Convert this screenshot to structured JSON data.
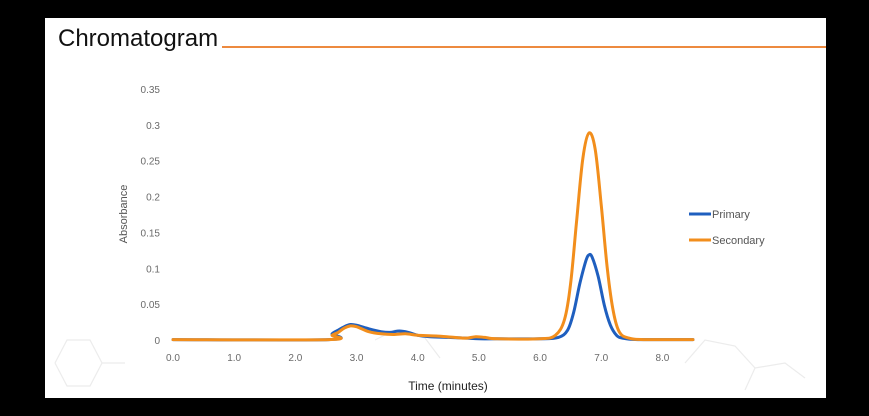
{
  "colors": {
    "primary": "#1f5fbf",
    "secondary": "#f28e1c",
    "accent_rule": "#ed8a3f"
  },
  "chart_data": {
    "type": "line",
    "title": "Chromatogram",
    "xlabel": "Time (minutes)",
    "ylabel": "Absorbance",
    "xlim": [
      0,
      8.5
    ],
    "ylim": [
      0,
      0.35
    ],
    "x_ticks": [
      "0.0",
      "1.0",
      "2.0",
      "3.0",
      "4.0",
      "5.0",
      "6.0",
      "7.0",
      "8.0"
    ],
    "y_ticks": [
      "0",
      "0.05",
      "0.1",
      "0.15",
      "0.2",
      "0.25",
      "0.3",
      "0.35"
    ],
    "grid": false,
    "legend_position": "right",
    "series": [
      {
        "name": "Primary",
        "color": "#1f5fbf",
        "points": [
          [
            0,
            0.002
          ],
          [
            2.55,
            0.002
          ],
          [
            2.6,
            0.01
          ],
          [
            2.7,
            0.015
          ],
          [
            2.8,
            0.02
          ],
          [
            2.9,
            0.023
          ],
          [
            3.0,
            0.022
          ],
          [
            3.2,
            0.017
          ],
          [
            3.4,
            0.013
          ],
          [
            3.55,
            0.012
          ],
          [
            3.7,
            0.014
          ],
          [
            3.85,
            0.012
          ],
          [
            4.0,
            0.008
          ],
          [
            4.2,
            0.006
          ],
          [
            4.5,
            0.005
          ],
          [
            4.8,
            0.004
          ],
          [
            5.0,
            0.003
          ],
          [
            5.3,
            0.003
          ],
          [
            6.0,
            0.003
          ],
          [
            6.3,
            0.005
          ],
          [
            6.45,
            0.015
          ],
          [
            6.55,
            0.04
          ],
          [
            6.65,
            0.08
          ],
          [
            6.75,
            0.112
          ],
          [
            6.8,
            0.12
          ],
          [
            6.85,
            0.117
          ],
          [
            6.95,
            0.09
          ],
          [
            7.05,
            0.05
          ],
          [
            7.15,
            0.022
          ],
          [
            7.25,
            0.008
          ],
          [
            7.35,
            0.004
          ],
          [
            7.6,
            0.002
          ],
          [
            8.5,
            0.002
          ]
        ]
      },
      {
        "name": "Secondary",
        "color": "#f28e1c",
        "points": [
          [
            0,
            0.002
          ],
          [
            2.55,
            0.002
          ],
          [
            2.6,
            0.008
          ],
          [
            2.7,
            0.012
          ],
          [
            2.8,
            0.018
          ],
          [
            2.9,
            0.021
          ],
          [
            3.0,
            0.02
          ],
          [
            3.2,
            0.013
          ],
          [
            3.4,
            0.01
          ],
          [
            3.6,
            0.009
          ],
          [
            3.8,
            0.01
          ],
          [
            4.0,
            0.008
          ],
          [
            4.3,
            0.007
          ],
          [
            4.6,
            0.005
          ],
          [
            4.8,
            0.004
          ],
          [
            4.95,
            0.006
          ],
          [
            5.1,
            0.005
          ],
          [
            5.3,
            0.003
          ],
          [
            6.0,
            0.003
          ],
          [
            6.25,
            0.008
          ],
          [
            6.4,
            0.03
          ],
          [
            6.5,
            0.08
          ],
          [
            6.6,
            0.17
          ],
          [
            6.7,
            0.255
          ],
          [
            6.8,
            0.29
          ],
          [
            6.9,
            0.268
          ],
          [
            7.0,
            0.19
          ],
          [
            7.1,
            0.1
          ],
          [
            7.2,
            0.04
          ],
          [
            7.3,
            0.012
          ],
          [
            7.45,
            0.004
          ],
          [
            7.7,
            0.002
          ],
          [
            8.5,
            0.002
          ]
        ]
      }
    ]
  }
}
